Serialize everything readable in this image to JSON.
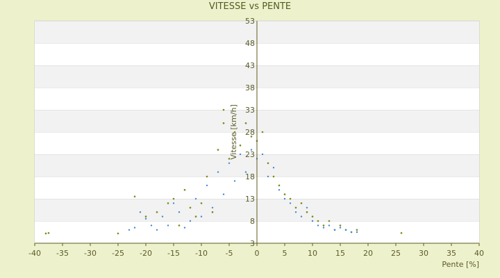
{
  "chart_data": {
    "type": "scatter",
    "title": "VITESSE vs PENTE",
    "xlabel": "Pente [%]",
    "ylabel": "Vitesse [km/h]",
    "xlim": [
      -40,
      40
    ],
    "ylim": [
      3,
      53
    ],
    "x_ticks": [
      "-40",
      "-35",
      "-30",
      "-25",
      "-20",
      "-15",
      "-10",
      "-5",
      "0",
      "5",
      "10",
      "15",
      "20",
      "25",
      "30",
      "35",
      "40"
    ],
    "y_ticks": [
      "3",
      "8",
      "13",
      "18",
      "23",
      "28",
      "33",
      "38",
      "43",
      "48",
      "53"
    ],
    "grid": "alternating horizontal bands",
    "series": [
      {
        "color": "#7a8a12",
        "marker": "dot",
        "points": [
          [
            -38,
            5.2
          ],
          [
            -37.5,
            5.3
          ],
          [
            -25,
            5.2
          ],
          [
            -22,
            13.5
          ],
          [
            -20,
            9
          ],
          [
            -18,
            10
          ],
          [
            -16,
            12
          ],
          [
            -15,
            13
          ],
          [
            -14,
            7
          ],
          [
            -13,
            15
          ],
          [
            -12,
            11
          ],
          [
            -11,
            9
          ],
          [
            -10,
            12
          ],
          [
            -9,
            18
          ],
          [
            -8,
            10
          ],
          [
            -7,
            24
          ],
          [
            -6,
            30
          ],
          [
            -6,
            33
          ],
          [
            -5,
            22
          ],
          [
            -4,
            28
          ],
          [
            -3,
            25
          ],
          [
            -2,
            30
          ],
          [
            -1,
            27
          ],
          [
            0,
            26
          ],
          [
            1,
            28
          ],
          [
            2,
            21
          ],
          [
            3,
            18
          ],
          [
            4,
            16
          ],
          [
            5,
            14
          ],
          [
            6,
            13
          ],
          [
            7,
            11
          ],
          [
            8,
            12
          ],
          [
            9,
            10
          ],
          [
            10,
            9
          ],
          [
            11,
            8
          ],
          [
            12,
            7
          ],
          [
            13,
            8
          ],
          [
            14,
            6
          ],
          [
            15,
            7
          ],
          [
            16,
            6
          ],
          [
            17,
            5.5
          ],
          [
            18,
            6
          ],
          [
            26,
            5.3
          ]
        ]
      },
      {
        "color": "#3a8cd8",
        "marker": "dot",
        "points": [
          [
            -23,
            6
          ],
          [
            -22,
            6.5
          ],
          [
            -21,
            10
          ],
          [
            -20,
            8.5
          ],
          [
            -19,
            7
          ],
          [
            -18,
            6
          ],
          [
            -17,
            9
          ],
          [
            -16,
            7
          ],
          [
            -15,
            12
          ],
          [
            -14,
            10
          ],
          [
            -13,
            6.5
          ],
          [
            -12,
            8
          ],
          [
            -11,
            13
          ],
          [
            -10,
            9
          ],
          [
            -9,
            16
          ],
          [
            -8,
            11
          ],
          [
            -7,
            19
          ],
          [
            -6,
            14
          ],
          [
            -5,
            21
          ],
          [
            -4,
            17
          ],
          [
            -3,
            23
          ],
          [
            -2,
            19
          ],
          [
            -1,
            24
          ],
          [
            0,
            22
          ],
          [
            1,
            23
          ],
          [
            2,
            18
          ],
          [
            3,
            20
          ],
          [
            4,
            15
          ],
          [
            5,
            13
          ],
          [
            6,
            12
          ],
          [
            7,
            10
          ],
          [
            8,
            9
          ],
          [
            9,
            11
          ],
          [
            10,
            8
          ],
          [
            11,
            7
          ],
          [
            12,
            6.5
          ],
          [
            13,
            7
          ],
          [
            14,
            6
          ],
          [
            15,
            6.5
          ],
          [
            16,
            6
          ],
          [
            17,
            5.5
          ],
          [
            18,
            5.5
          ]
        ]
      }
    ]
  }
}
